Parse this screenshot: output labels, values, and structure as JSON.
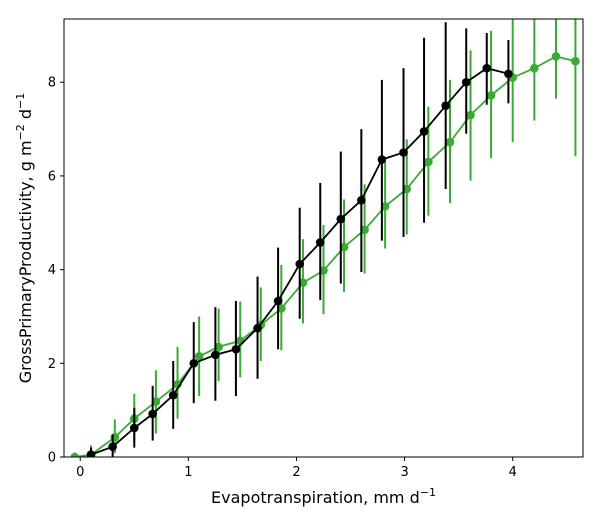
{
  "chart_data": {
    "type": "line",
    "xlabel": "Evapotranspiration,  mm d",
    "xlabel_sup": "−1",
    "ylabel": "GrossPrimaryProductivity,  g m",
    "ylabel_sup1": "−2",
    "ylabel_mid": " d",
    "ylabel_sup2": "−1",
    "xlim": [
      -0.15,
      4.65
    ],
    "ylim": [
      0,
      9.35
    ],
    "x_ticks": [
      0,
      1,
      2,
      3,
      4
    ],
    "y_ticks": [
      0,
      2,
      4,
      6,
      8
    ],
    "x_tick_labels": [
      "0",
      "1",
      "2",
      "3",
      "4"
    ],
    "y_tick_labels": [
      "0",
      "2",
      "4",
      "6",
      "8"
    ],
    "grid": false,
    "legend": "none",
    "series": [
      {
        "color": "#000000",
        "x": [
          0.1,
          0.3,
          0.5,
          0.67,
          0.86,
          1.05,
          1.25,
          1.44,
          1.64,
          1.83,
          2.03,
          2.22,
          2.41,
          2.6,
          2.79,
          2.99,
          3.18,
          3.38,
          3.57,
          3.76,
          3.96
        ],
        "y": [
          0.05,
          0.22,
          0.62,
          0.92,
          1.32,
          2.0,
          2.18,
          2.3,
          2.75,
          3.33,
          4.12,
          4.58,
          5.08,
          5.48,
          6.35,
          6.5,
          6.95,
          7.5,
          8.0,
          8.3,
          8.18
        ],
        "err_low": [
          -0.1,
          0.0,
          0.2,
          0.35,
          0.6,
          1.15,
          1.2,
          1.3,
          1.67,
          2.3,
          2.95,
          3.35,
          3.7,
          3.95,
          4.62,
          4.7,
          5.0,
          5.72,
          6.9,
          7.52,
          7.55
        ],
        "err_high": [
          0.2,
          0.48,
          1.05,
          1.52,
          2.05,
          2.88,
          3.2,
          3.33,
          3.85,
          4.47,
          5.32,
          5.85,
          6.52,
          7.0,
          8.05,
          8.3,
          8.95,
          9.28,
          9.15,
          9.05,
          8.9
        ]
      },
      {
        "color": "#3aaa35",
        "x": [
          -0.05,
          0.1,
          0.32,
          0.5,
          0.7,
          0.9,
          1.1,
          1.28,
          1.48,
          1.67,
          1.86,
          2.06,
          2.25,
          2.44,
          2.63,
          2.82,
          3.02,
          3.22,
          3.42,
          3.61,
          3.8,
          4.0,
          4.2,
          4.4,
          4.58
        ],
        "y": [
          0.0,
          0.05,
          0.42,
          0.82,
          1.18,
          1.55,
          2.15,
          2.35,
          2.48,
          2.82,
          3.17,
          3.72,
          3.98,
          4.48,
          4.85,
          5.35,
          5.72,
          6.3,
          6.72,
          7.3,
          7.72,
          8.1,
          8.3,
          8.55,
          8.45
        ],
        "err_low": [
          -0.1,
          -0.1,
          0.08,
          0.3,
          0.5,
          0.82,
          1.3,
          1.62,
          1.7,
          2.05,
          2.28,
          2.85,
          3.05,
          3.52,
          3.92,
          4.45,
          4.75,
          5.15,
          5.42,
          5.9,
          6.38,
          6.72,
          7.18,
          7.65,
          6.42
        ],
        "err_high": [
          0.1,
          0.25,
          0.8,
          1.35,
          1.85,
          2.35,
          3.0,
          3.17,
          3.32,
          3.62,
          4.1,
          4.65,
          4.95,
          5.5,
          5.82,
          6.3,
          6.78,
          7.48,
          8.05,
          8.68,
          9.1,
          9.4,
          9.4,
          9.4,
          9.4
        ]
      }
    ]
  }
}
